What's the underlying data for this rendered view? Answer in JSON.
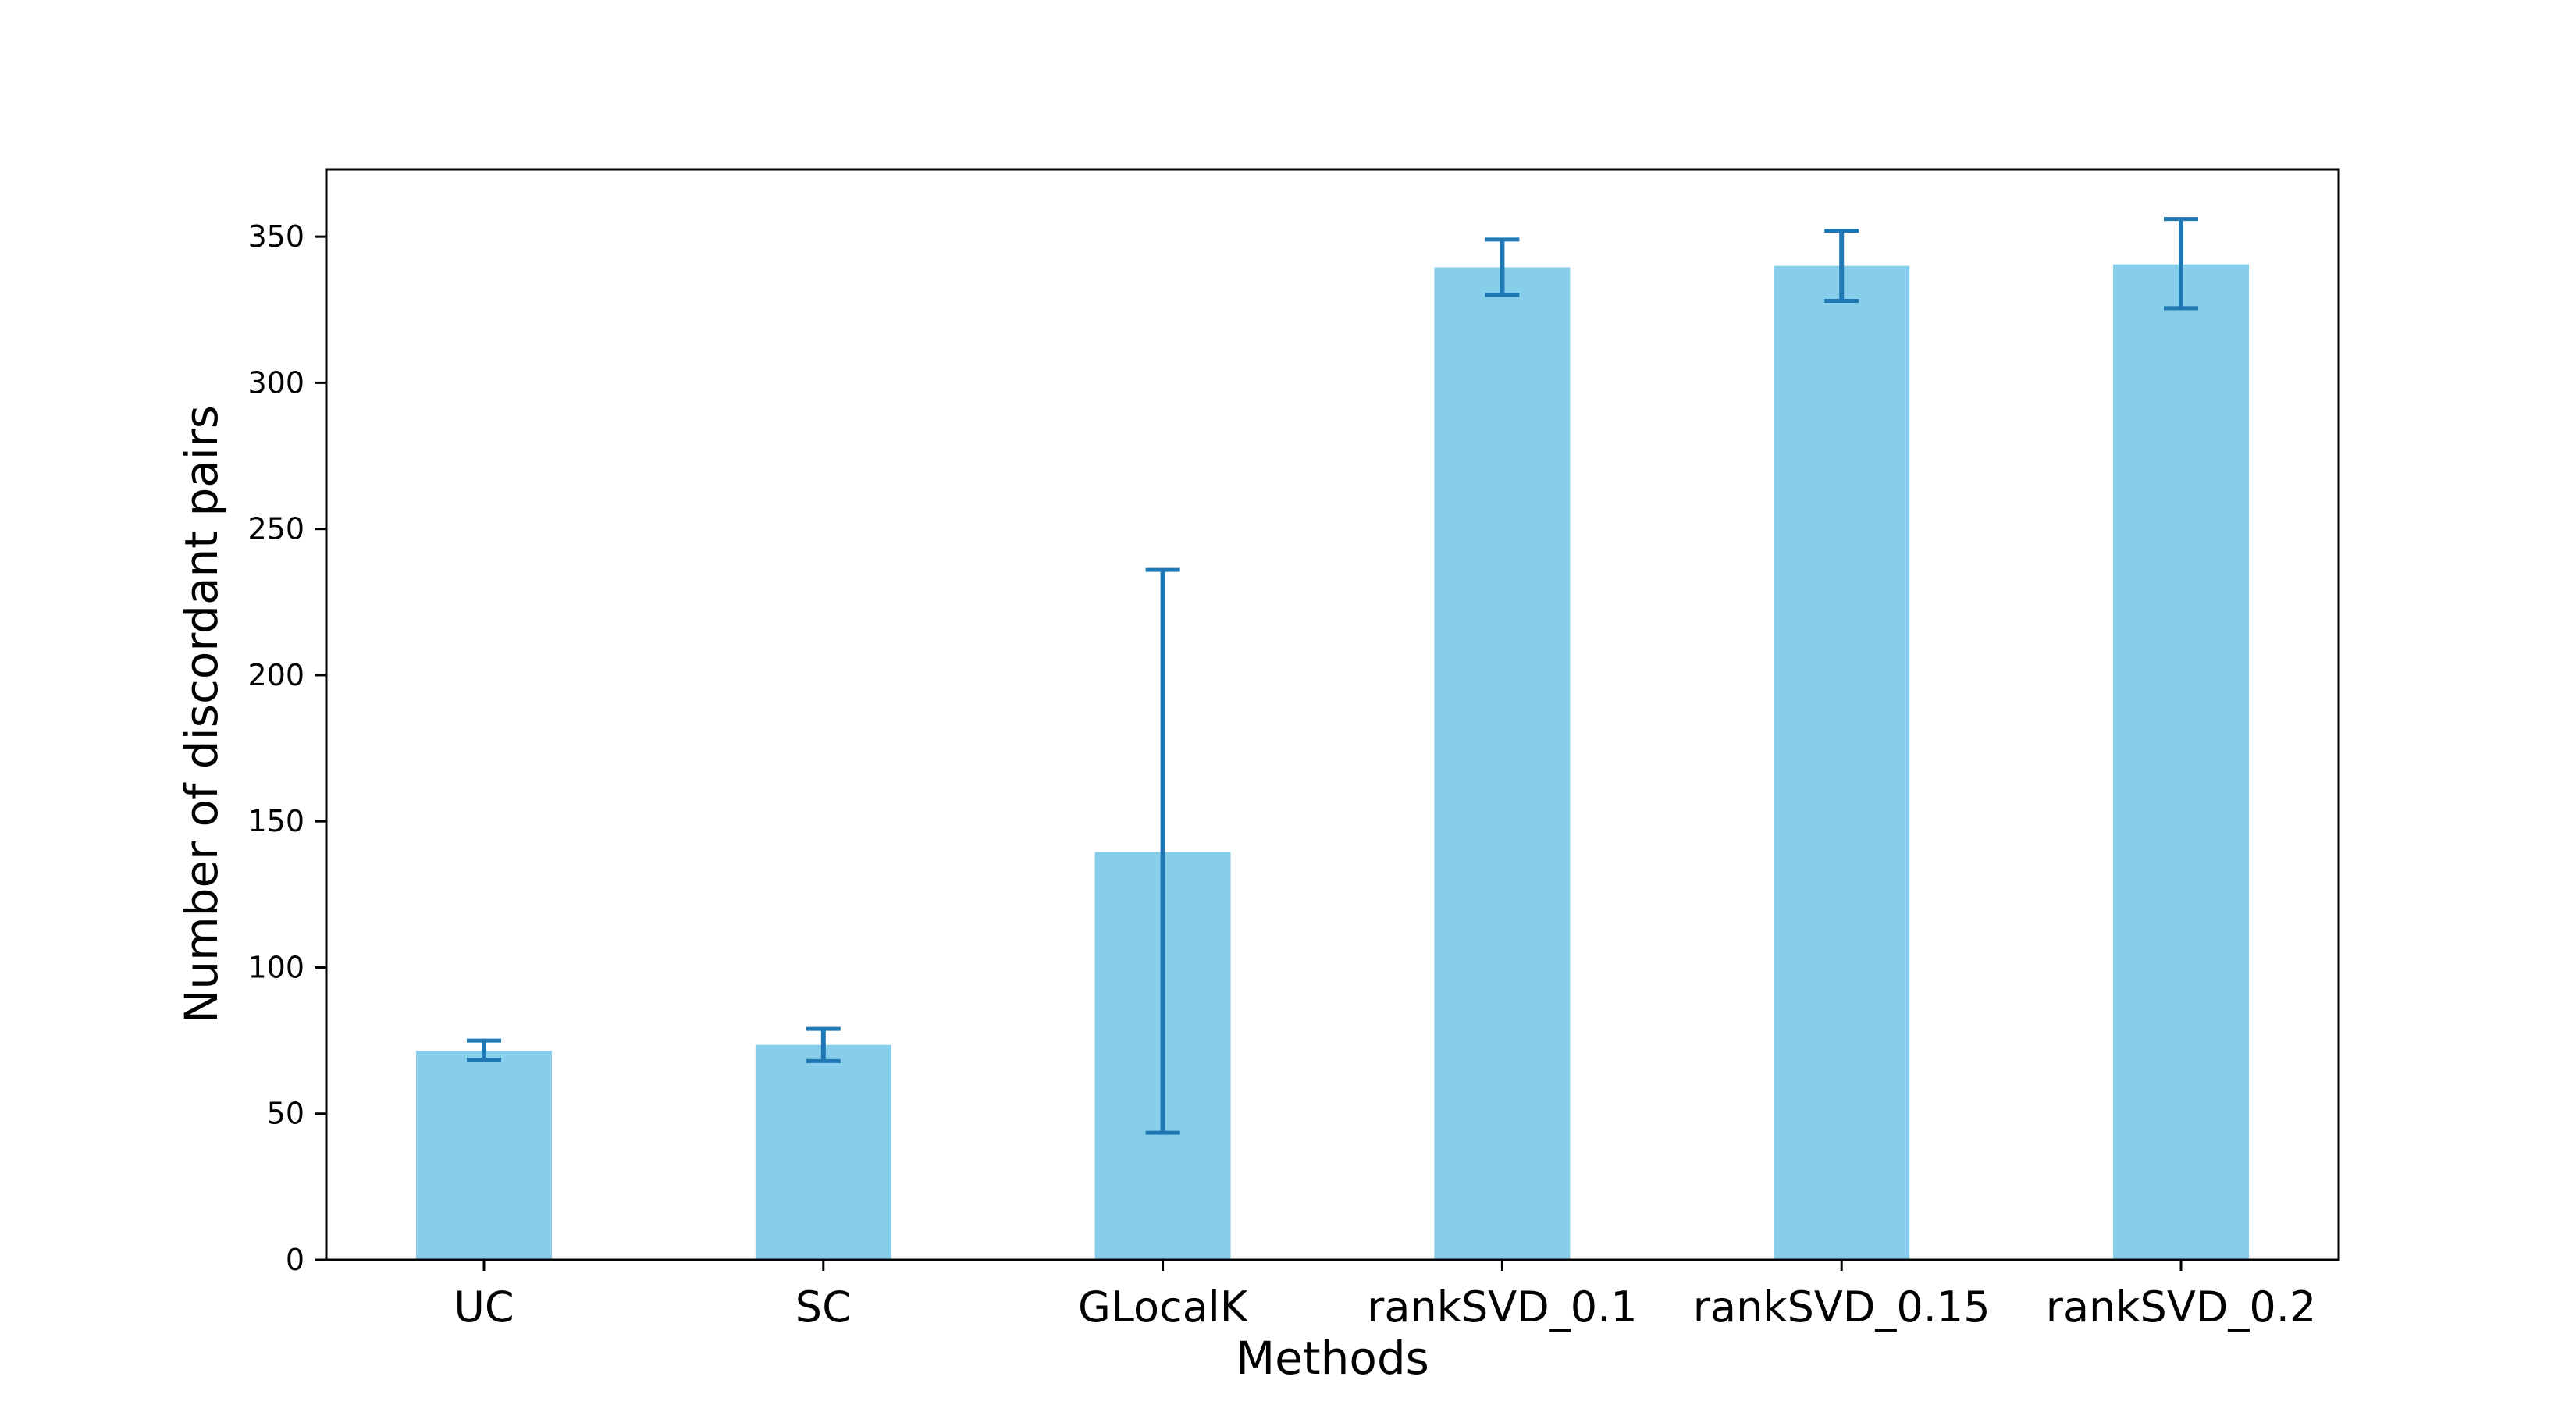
{
  "chart_data": {
    "type": "bar",
    "title": "",
    "xlabel": "Methods",
    "ylabel": "Number of discordant pairs",
    "categories": [
      "UC",
      "SC",
      "GLocalK",
      "rankSVD_0.1",
      "rankSVD_0.15",
      "rankSVD_0.2"
    ],
    "values": [
      71.5,
      73.5,
      139.5,
      339.5,
      340,
      340.5
    ],
    "error_low": [
      68.5,
      68,
      43.5,
      330,
      328,
      325.5
    ],
    "error_high": [
      75,
      79,
      236,
      349,
      352,
      356
    ],
    "ylim": [
      0,
      373
    ],
    "yticks": [
      0,
      50,
      100,
      150,
      200,
      250,
      300,
      350
    ],
    "grid": false,
    "bar_color": "#87CEEB",
    "error_color": "#1F77B4"
  }
}
